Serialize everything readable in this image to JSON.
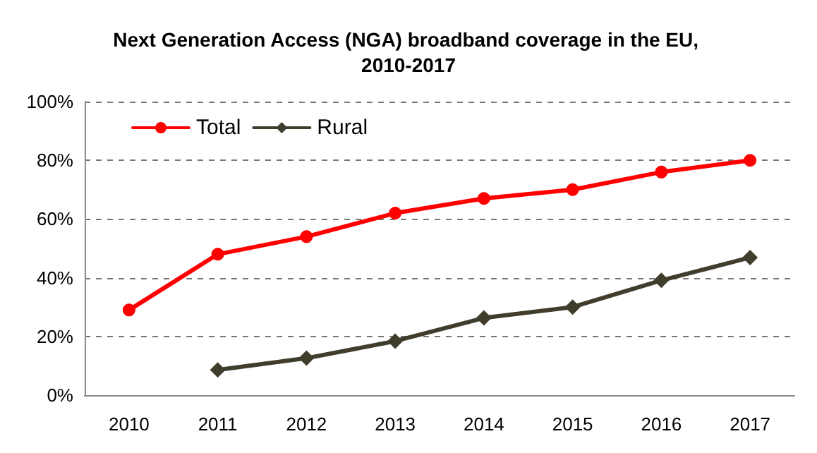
{
  "chart_data": {
    "type": "line",
    "title": "Next Generation Access (NGA) broadband coverage in the EU, 2010-2017",
    "categories": [
      "2010",
      "2011",
      "2012",
      "2013",
      "2014",
      "2015",
      "2016",
      "2017"
    ],
    "series": [
      {
        "name": "Total",
        "color": "#ff0000",
        "marker": "circle",
        "values": [
          29,
          48,
          54,
          62,
          67,
          70,
          76,
          80
        ]
      },
      {
        "name": "Rural",
        "color": "#403d2c",
        "marker": "diamond",
        "values": [
          null,
          8.6,
          12.6,
          18.4,
          26.3,
          30,
          39.1,
          46.9
        ]
      }
    ],
    "ylim": [
      0,
      100
    ],
    "yticks": [
      {
        "value": 0,
        "label": "0%"
      },
      {
        "value": 20,
        "label": "20%"
      },
      {
        "value": 40,
        "label": "40%"
      },
      {
        "value": 60,
        "label": "60%"
      },
      {
        "value": 80,
        "label": "80%"
      },
      {
        "value": 100,
        "label": "100%"
      }
    ],
    "grid": "y",
    "legend": "top left",
    "line_style": "solid"
  }
}
